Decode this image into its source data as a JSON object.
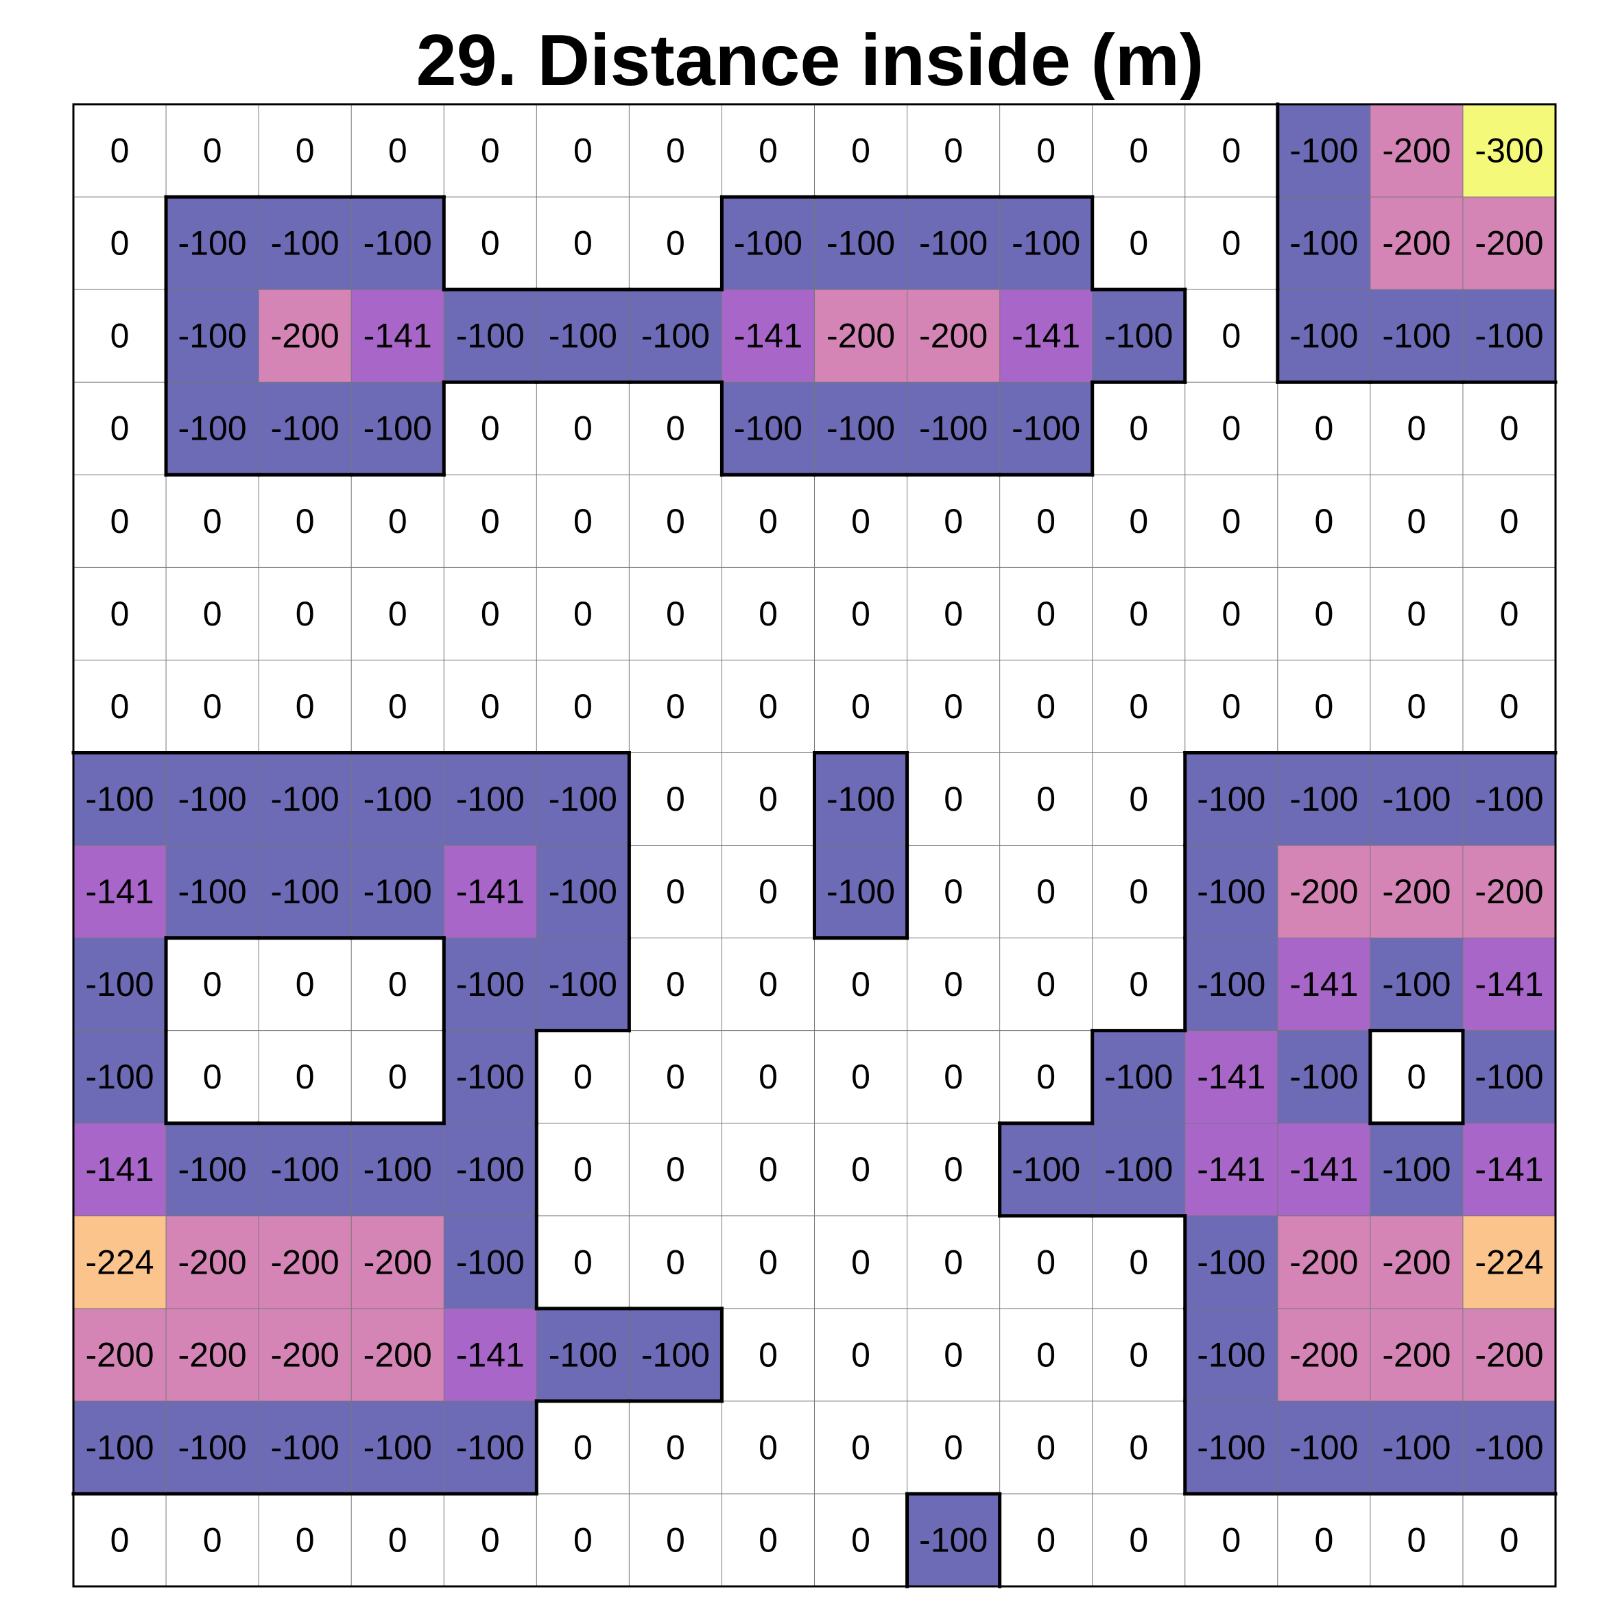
{
  "title": "29. Distance inside (m)",
  "chart_data": {
    "type": "heatmap",
    "title": "29. Distance inside (m)",
    "rows": 16,
    "cols": 16,
    "values": [
      [
        0,
        0,
        0,
        0,
        0,
        0,
        0,
        0,
        0,
        0,
        0,
        0,
        0,
        -100,
        -200,
        -300
      ],
      [
        0,
        -100,
        -100,
        -100,
        0,
        0,
        0,
        -100,
        -100,
        -100,
        -100,
        0,
        0,
        -100,
        -200,
        -200
      ],
      [
        0,
        -100,
        -200,
        -141,
        -100,
        -100,
        -100,
        -141,
        -200,
        -200,
        -141,
        -100,
        0,
        -100,
        -100,
        -100
      ],
      [
        0,
        -100,
        -100,
        -100,
        0,
        0,
        0,
        -100,
        -100,
        -100,
        -100,
        0,
        0,
        0,
        0,
        0
      ],
      [
        0,
        0,
        0,
        0,
        0,
        0,
        0,
        0,
        0,
        0,
        0,
        0,
        0,
        0,
        0,
        0
      ],
      [
        0,
        0,
        0,
        0,
        0,
        0,
        0,
        0,
        0,
        0,
        0,
        0,
        0,
        0,
        0,
        0
      ],
      [
        0,
        0,
        0,
        0,
        0,
        0,
        0,
        0,
        0,
        0,
        0,
        0,
        0,
        0,
        0,
        0
      ],
      [
        -100,
        -100,
        -100,
        -100,
        -100,
        -100,
        0,
        0,
        -100,
        0,
        0,
        0,
        -100,
        -100,
        -100,
        -100
      ],
      [
        -141,
        -100,
        -100,
        -100,
        -141,
        -100,
        0,
        0,
        -100,
        0,
        0,
        0,
        -100,
        -200,
        -200,
        -200
      ],
      [
        -100,
        0,
        0,
        0,
        -100,
        -100,
        0,
        0,
        0,
        0,
        0,
        0,
        -100,
        -141,
        -100,
        -141
      ],
      [
        -100,
        0,
        0,
        0,
        -100,
        0,
        0,
        0,
        0,
        0,
        0,
        -100,
        -141,
        -100,
        0,
        -100
      ],
      [
        -141,
        -100,
        -100,
        -100,
        -100,
        0,
        0,
        0,
        0,
        0,
        -100,
        -100,
        -141,
        -141,
        -100,
        -141
      ],
      [
        -224,
        -200,
        -200,
        -200,
        -100,
        0,
        0,
        0,
        0,
        0,
        0,
        0,
        -100,
        -200,
        -200,
        -224
      ],
      [
        -200,
        -200,
        -200,
        -200,
        -141,
        -100,
        -100,
        0,
        0,
        0,
        0,
        0,
        -100,
        -200,
        -200,
        -200
      ],
      [
        -100,
        -100,
        -100,
        -100,
        -100,
        0,
        0,
        0,
        0,
        0,
        0,
        0,
        -100,
        -100,
        -100,
        -100
      ],
      [
        0,
        0,
        0,
        0,
        0,
        0,
        0,
        0,
        0,
        -100,
        0,
        0,
        0,
        0,
        0,
        0
      ]
    ],
    "value_colors": {
      "0": "#ffffff",
      "-100": "#6d6ab6",
      "-141": "#a866c9",
      "-200": "#d485b5",
      "-224": "#fbc48c",
      "-300": "#f5f97a"
    },
    "grid_line_color": "#777777",
    "boundary_color": "#000000",
    "grid": true,
    "legend": "none"
  }
}
